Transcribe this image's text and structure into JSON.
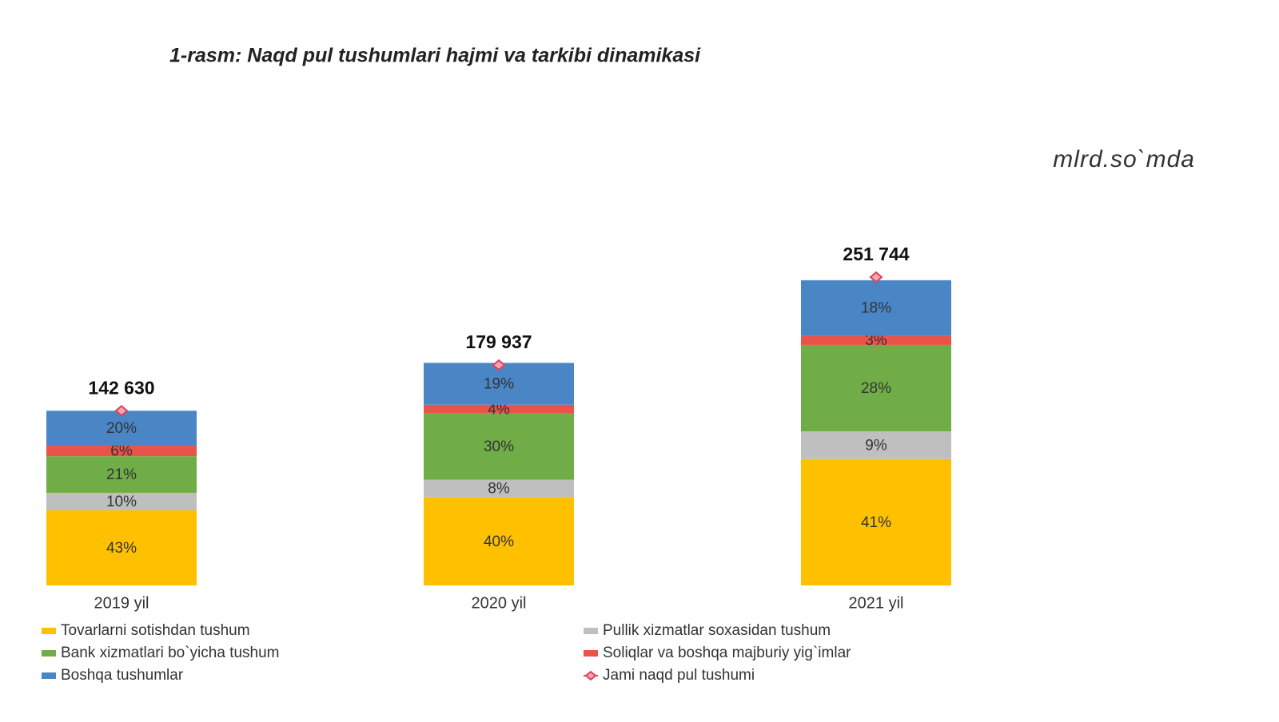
{
  "chart_data": {
    "type": "stacked_bar",
    "title": "1-rasm: Naqd pul tushumlari hajmi va tarkibi dinamikasi",
    "unit_label": "mlrd.so`mda",
    "categories": [
      "2019 yil",
      "2020 yil",
      "2021 yil"
    ],
    "series": [
      {
        "name": "Tovarlarni sotishdan tushum",
        "color": "#ffc000",
        "values": [
          43,
          40,
          41
        ],
        "value_labels": [
          "43%",
          "40%",
          "41%"
        ]
      },
      {
        "name": "Pullik xizmatlar soxasidan tushum",
        "color": "#bfbfbf",
        "values": [
          10,
          8,
          9
        ],
        "value_labels": [
          "10%",
          "8%",
          "9%"
        ]
      },
      {
        "name": "Bank xizmatlari bo`yicha tushum",
        "color": "#70ad47",
        "values": [
          21,
          30,
          28
        ],
        "value_labels": [
          "21%",
          "30%",
          "28%"
        ]
      },
      {
        "name": "Soliqlar va boshqa majburiy yig`imlar",
        "color": "#e8534a",
        "values": [
          6,
          4,
          3
        ],
        "value_labels": [
          "6%",
          "4%",
          "3%"
        ]
      },
      {
        "name": "Boshqa tushumlar",
        "color": "#4a86c5",
        "values": [
          20,
          19,
          18
        ],
        "value_labels": [
          "20%",
          "19%",
          "18%"
        ]
      }
    ],
    "total": {
      "name": "Jami naqd pul tushumi",
      "color": "#e0405a",
      "values": [
        142630,
        179937,
        251744
      ],
      "value_labels": [
        "142 630",
        "179 937",
        "251 744"
      ]
    }
  }
}
